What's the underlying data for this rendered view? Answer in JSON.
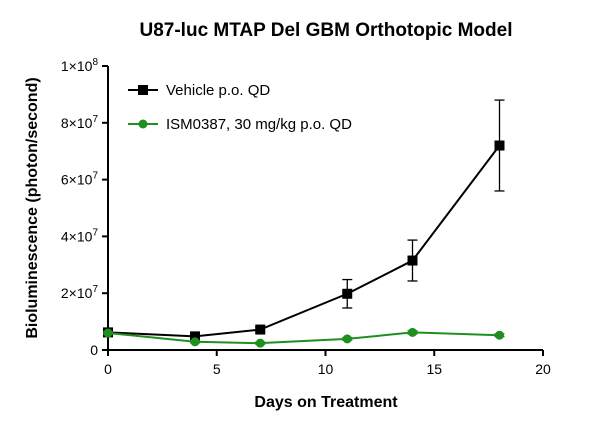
{
  "chart_data": {
    "type": "line",
    "title": "U87-luc MTAP Del GBM Orthotopic Model",
    "xlabel": "Days on Treatment",
    "ylabel": "Bioluminescence (photon/second)",
    "xlim": [
      0,
      20
    ],
    "ylim": [
      0,
      100000000
    ],
    "x_ticks": [
      0,
      5,
      10,
      15,
      20
    ],
    "x_tick_labels": [
      "0",
      "5",
      "10",
      "15",
      "20"
    ],
    "y_ticks": [
      0,
      20000000,
      40000000,
      60000000,
      80000000,
      100000000
    ],
    "y_tick_labels": [
      {
        "base": "0",
        "exp": ""
      },
      {
        "base": "2×10",
        "exp": "7"
      },
      {
        "base": "4×10",
        "exp": "7"
      },
      {
        "base": "6×10",
        "exp": "7"
      },
      {
        "base": "8×10",
        "exp": "7"
      },
      {
        "base": "1×10",
        "exp": "8"
      }
    ],
    "grid": false,
    "legend_position": "top-left",
    "series": [
      {
        "name": "Vehicle p.o. QD",
        "color": "#000000",
        "marker": "square",
        "x": [
          0,
          4,
          7,
          11,
          14,
          18
        ],
        "y": [
          6200000,
          4800000,
          7200000,
          19800000,
          31500000,
          72000000
        ],
        "error": [
          500000,
          500000,
          700000,
          5000000,
          7200000,
          16000000
        ]
      },
      {
        "name": "ISM0387, 30 mg/kg p.o. QD",
        "color": "#1f8f1f",
        "marker": "circle",
        "x": [
          0,
          4,
          7,
          11,
          14,
          18
        ],
        "y": [
          6000000,
          2900000,
          2400000,
          3900000,
          6200000,
          5200000
        ],
        "error": [
          400000,
          400000,
          400000,
          500000,
          600000,
          500000
        ]
      }
    ]
  }
}
